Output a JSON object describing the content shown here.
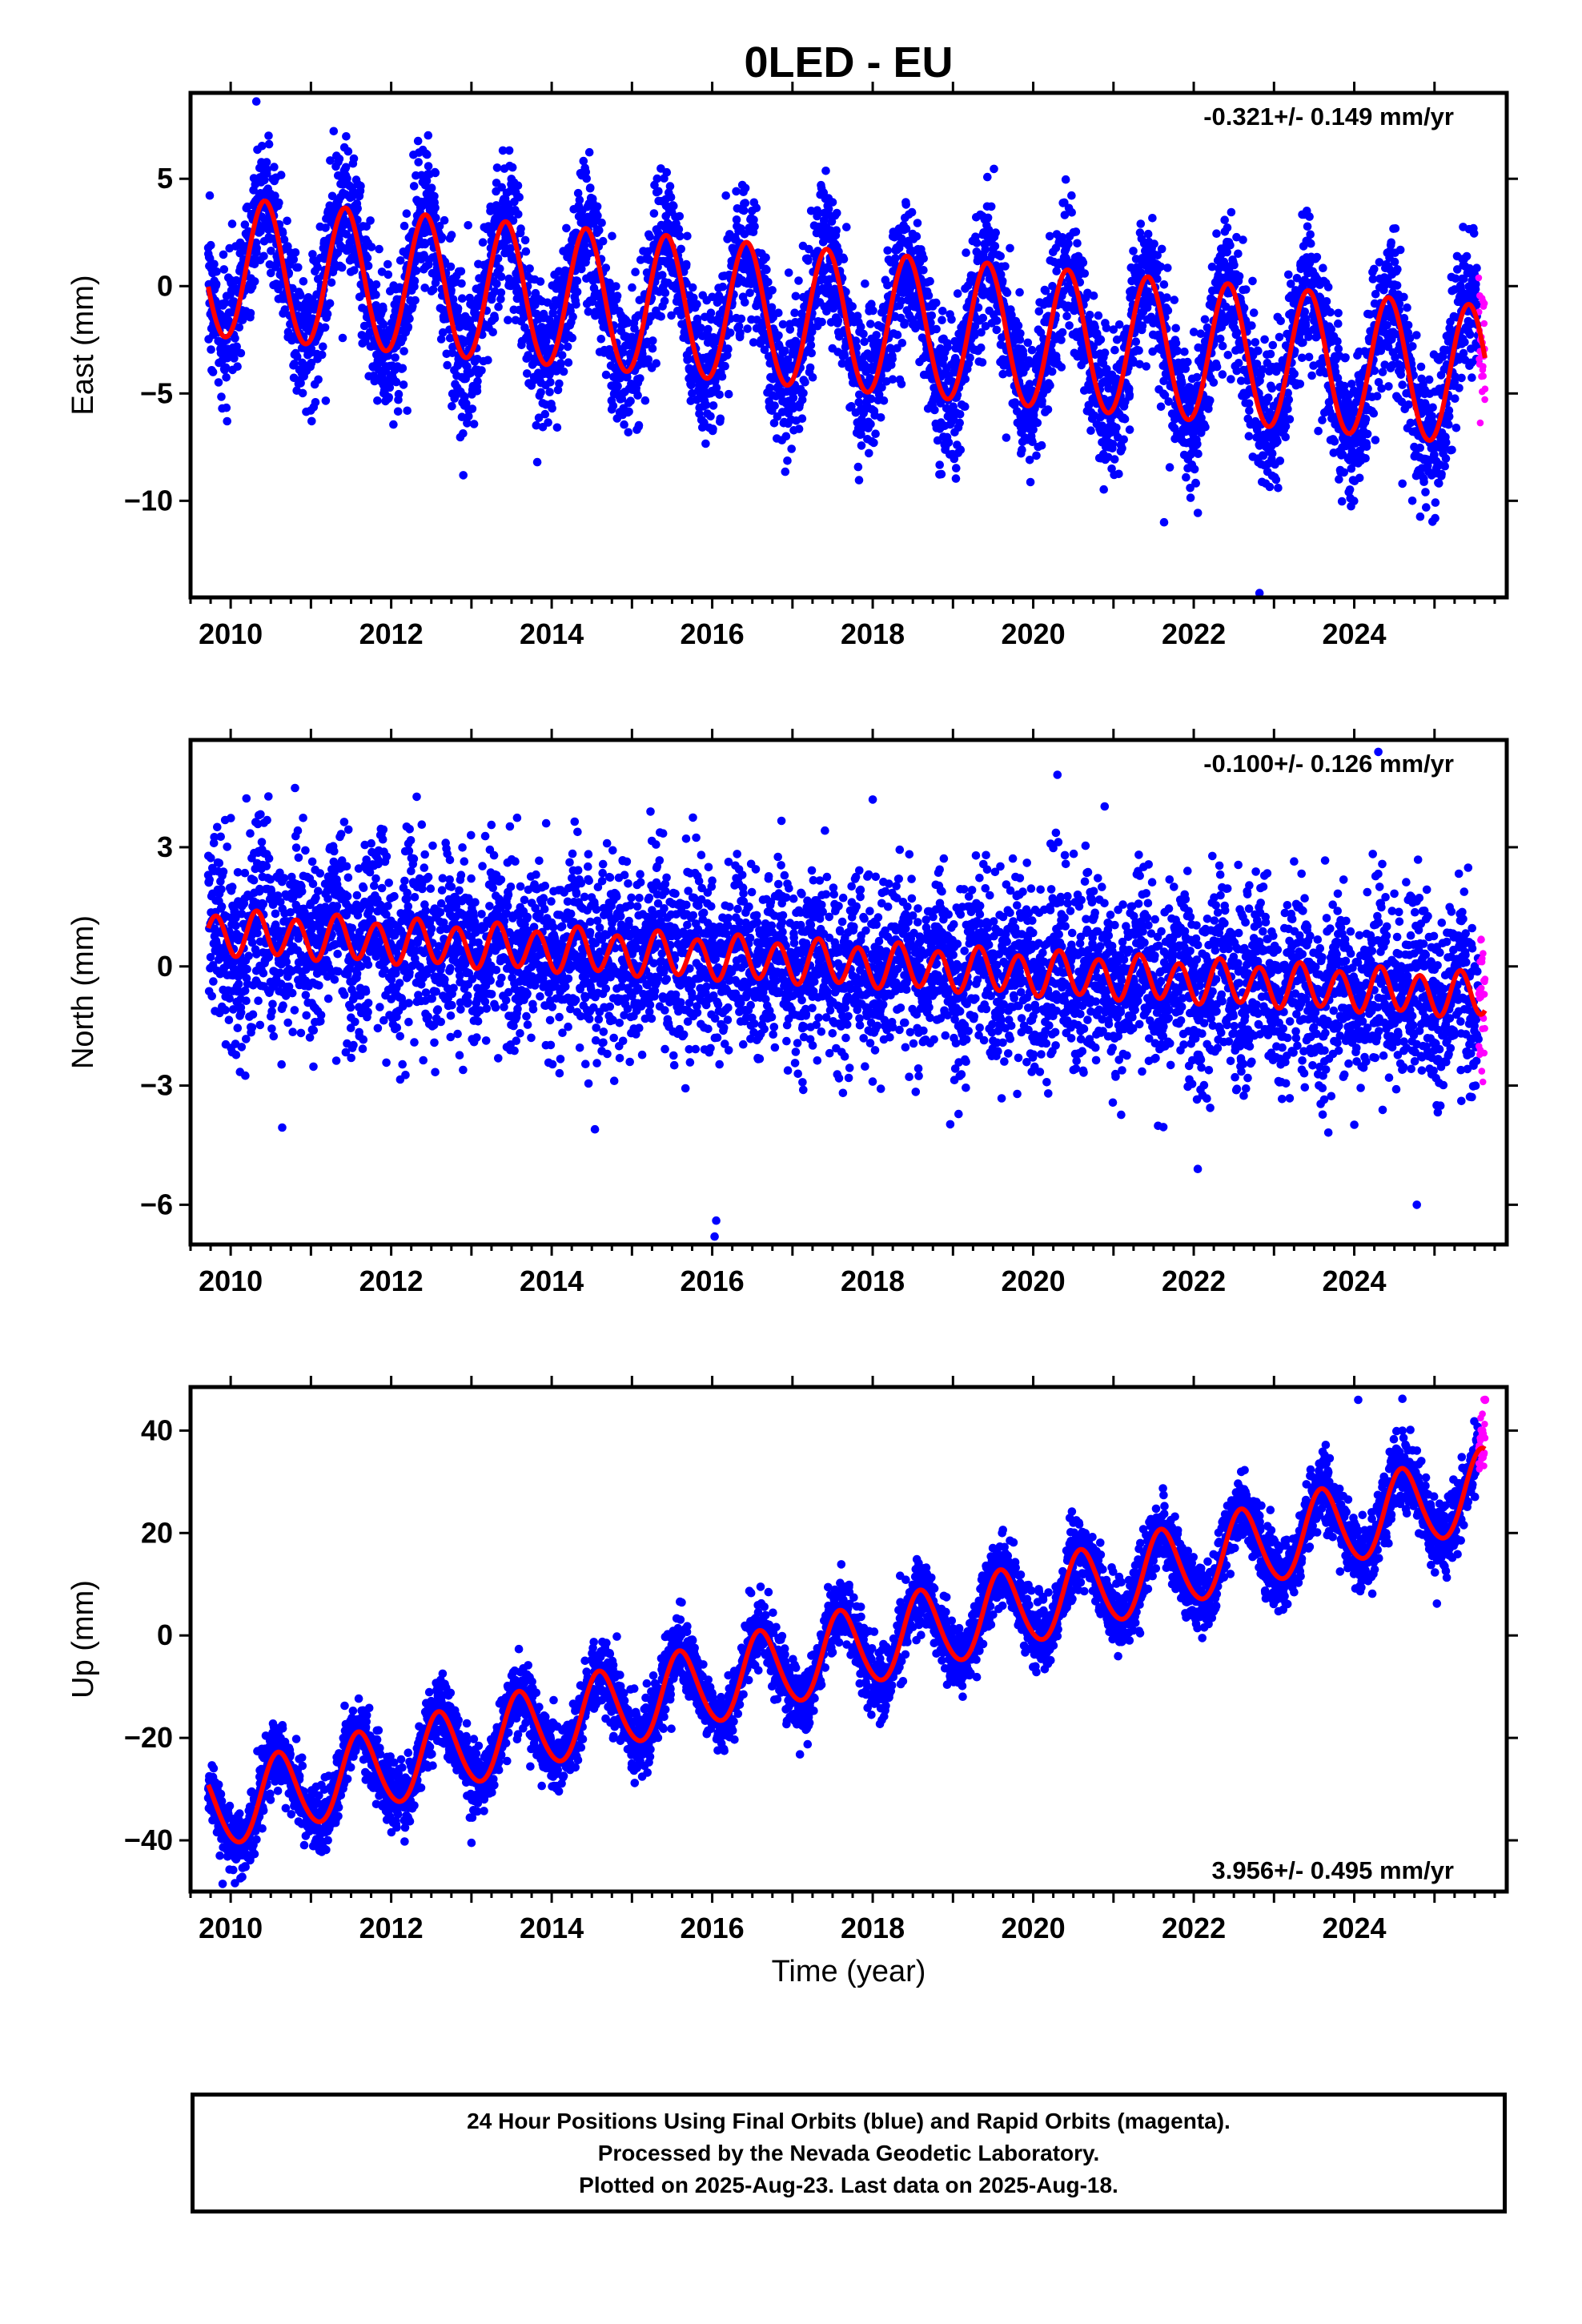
{
  "title": "0LED - EU",
  "footer": {
    "line1": "24 Hour Positions Using Final Orbits (blue) and Rapid Orbits (magenta).",
    "line2": "Processed by the Nevada Geodetic Laboratory.",
    "line3": "Plotted on 2025-Aug-23. Last data on 2025-Aug-18."
  },
  "colors": {
    "final_orbits": "#0000ff",
    "rapid_orbits": "#ff00ff",
    "model_fit": "#ff0000"
  },
  "chart_data": [
    {
      "type": "scatter",
      "ylabel": "East (mm)",
      "xlabel": "",
      "xlim": [
        2009.5,
        2025.9
      ],
      "ylim": [
        -14.5,
        9
      ],
      "xticks": [
        2010,
        2012,
        2014,
        2016,
        2018,
        2020,
        2022,
        2024
      ],
      "yticks": [
        5,
        0,
        -5,
        -10
      ],
      "annotation": "-0.321+/- 0.149 mm/yr",
      "annotation_position": "top-right",
      "data_start": 2009.72,
      "data_end": 2025.63,
      "rapid_start": 2025.55,
      "fit": {
        "offset": 0.85,
        "rate": -0.321,
        "annual_amplitude": 3.25,
        "annual_peak": 2010.43,
        "semiannual_amplitude": 0.1,
        "semiannual_phase": 0.3
      },
      "scatter_std": 1.65,
      "outliers": [
        [
          2010.32,
          8.6
        ],
        [
          2013.82,
          -8.2
        ],
        [
          2021.63,
          -11.0
        ],
        [
          2022.82,
          -14.3
        ],
        [
          2012.2,
          -5.8
        ],
        [
          2024.6,
          -9.2
        ]
      ]
    },
    {
      "type": "scatter",
      "ylabel": "North (mm)",
      "xlabel": "",
      "xlim": [
        2009.5,
        2025.9
      ],
      "ylim": [
        -7,
        5.7
      ],
      "xticks": [
        2010,
        2012,
        2014,
        2016,
        2018,
        2020,
        2022,
        2024
      ],
      "yticks": [
        3,
        0,
        -3,
        -6
      ],
      "annotation": "-0.100+/- 0.126 mm/yr",
      "annotation_position": "top-right",
      "data_start": 2009.72,
      "data_end": 2025.63,
      "rapid_start": 2025.55,
      "fit": {
        "offset": 0.85,
        "rate": -0.1,
        "annual_amplitude": 0.1,
        "annual_peak": 2010.4,
        "semiannual_amplitude": 0.52,
        "semiannual_phase": 1.0
      },
      "scatter_std": 1.15,
      "outliers": [
        [
          2016.03,
          -6.8
        ],
        [
          2016.05,
          -6.4
        ],
        [
          2024.78,
          -6.0
        ],
        [
          2024.3,
          5.4
        ],
        [
          2022.05,
          -5.1
        ],
        [
          2018,
          4.2
        ]
      ]
    },
    {
      "type": "scatter",
      "ylabel": "Up (mm)",
      "xlabel": "Time (year)",
      "xlim": [
        2009.5,
        2025.9
      ],
      "ylim": [
        -50,
        48.5
      ],
      "xticks": [
        2010,
        2012,
        2014,
        2016,
        2018,
        2020,
        2022,
        2024
      ],
      "yticks": [
        40,
        20,
        0,
        -20,
        -40
      ],
      "annotation": "3.956+/- 0.495 mm/yr",
      "annotation_position": "bottom-right",
      "data_start": 2009.72,
      "data_end": 2025.63,
      "rapid_start": 2025.55,
      "fit": {
        "offset": -34.5,
        "rate": 3.956,
        "annual_amplitude": 7.8,
        "annual_peak": 2010.6,
        "semiannual_amplitude": 0.6,
        "semiannual_phase": 0.7
      },
      "scatter_std": 3.4,
      "outliers": [
        [
          2009.9,
          -48.5
        ],
        [
          2013.0,
          -40.5
        ],
        [
          2024.6,
          46.2
        ],
        [
          2024.05,
          46.0
        ],
        [
          2025.63,
          46.0
        ]
      ]
    }
  ]
}
